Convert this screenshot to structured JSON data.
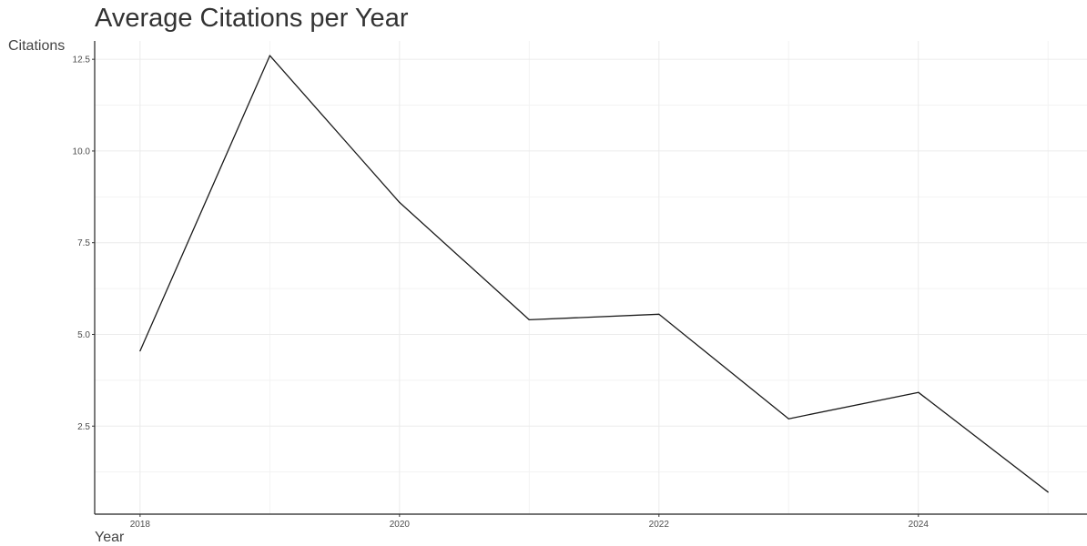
{
  "chart_data": {
    "type": "line",
    "title": "Average Citations per Year",
    "xlabel": "Year",
    "ylabel": "Citations",
    "x": [
      2018,
      2019,
      2020,
      2021,
      2022,
      2023,
      2024,
      2025
    ],
    "series": [
      {
        "values": [
          4.55,
          12.6,
          8.6,
          5.4,
          5.55,
          2.7,
          3.42,
          0.7
        ]
      }
    ],
    "xlim": [
      2017.65,
      2025.3
    ],
    "ylim": [
      0.1,
      13.0
    ],
    "xticks": [
      2018,
      2020,
      2022,
      2024
    ],
    "xtick_labels": [
      "2018",
      "2020",
      "2022",
      "2024"
    ],
    "yticks": [
      2.5,
      5.0,
      7.5,
      10.0,
      12.5
    ],
    "ytick_labels": [
      "2.5",
      "5.0",
      "7.5",
      "10.0",
      "12.5"
    ],
    "grid": true,
    "line_color": "#1a1a1a"
  }
}
